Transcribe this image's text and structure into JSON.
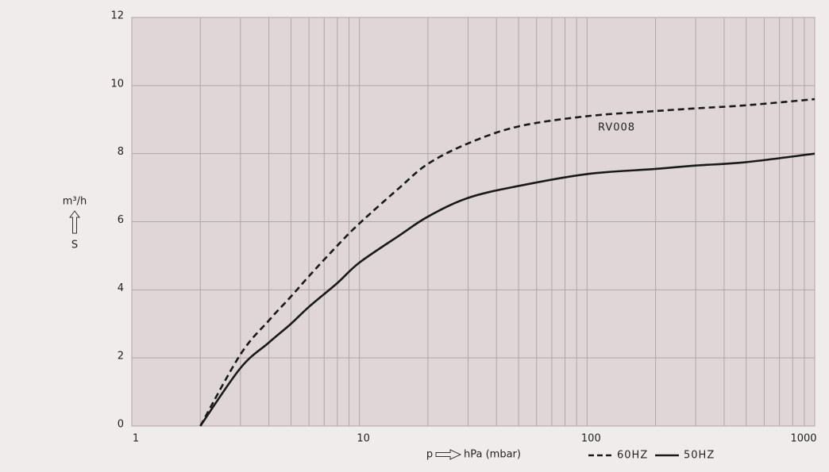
{
  "chart_data": {
    "type": "line",
    "log_x": true,
    "grid": true,
    "y_label_unit": "m³/h",
    "y_label": "S",
    "x_label_symbol": "p",
    "x_label": "hPa (mbar)",
    "annotation": "RV008",
    "x": [
      2,
      3,
      4,
      5,
      6,
      8,
      10,
      15,
      20,
      30,
      50,
      100,
      200,
      300,
      500,
      1000
    ],
    "series": [
      {
        "name": "60HZ",
        "color": "#1a1a1a",
        "style": "dashed",
        "values": [
          0,
          2.1,
          3.1,
          3.8,
          4.4,
          5.3,
          5.95,
          7.0,
          7.7,
          8.3,
          8.8,
          9.1,
          9.25,
          9.33,
          9.42,
          9.6
        ]
      },
      {
        "name": "50HZ",
        "color": "#1a1a1a",
        "style": "solid",
        "values": [
          0,
          1.7,
          2.45,
          3.0,
          3.5,
          4.2,
          4.8,
          5.6,
          6.15,
          6.7,
          7.05,
          7.4,
          7.55,
          7.65,
          7.75,
          8.0
        ]
      }
    ],
    "xlim": [
      1,
      1000
    ],
    "ylim": [
      0,
      12
    ],
    "xticks": [
      1,
      10,
      100,
      1000
    ],
    "yticks": [
      0,
      2,
      4,
      6,
      8,
      10,
      12
    ]
  }
}
